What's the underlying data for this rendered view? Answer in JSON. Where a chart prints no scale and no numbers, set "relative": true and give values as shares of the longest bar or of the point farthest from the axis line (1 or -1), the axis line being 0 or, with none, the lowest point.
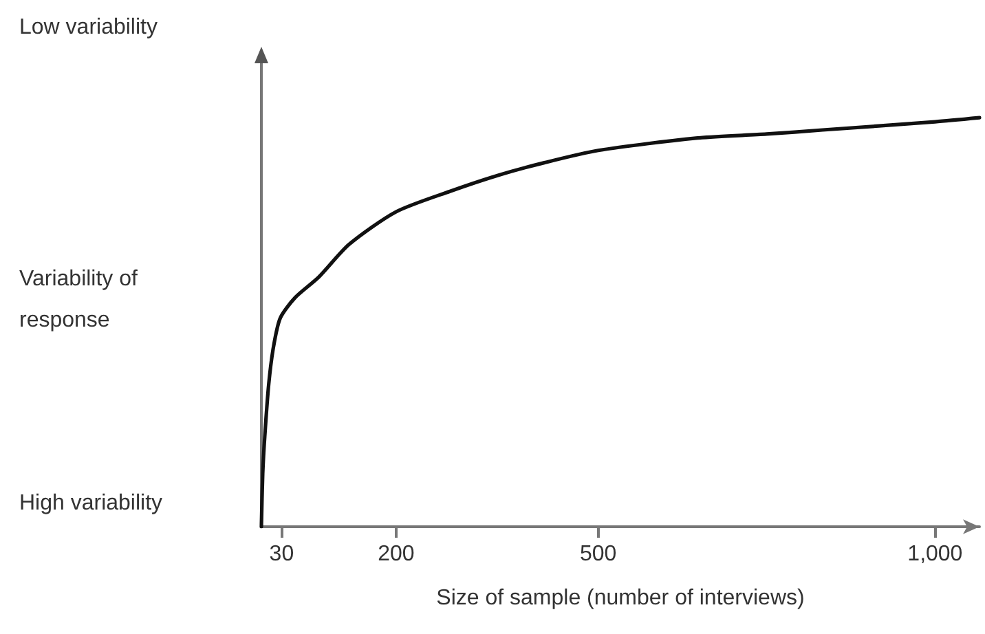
{
  "chart_data": {
    "type": "line",
    "relative": true,
    "xlabel": "Size of sample (number of interviews)",
    "annotations": [
      "Low variability",
      "Variability of response",
      "High variability"
    ],
    "x": [
      0,
      2,
      5,
      11,
      18,
      28,
      50,
      85,
      130,
      200,
      280,
      353,
      420,
      500,
      645,
      750,
      833,
      1000,
      1066
    ],
    "series": [
      {
        "color": "#111111",
        "values": [
          0,
          0.13,
          0.22,
          0.35,
          0.44,
          0.51,
          0.56,
          0.61,
          0.69,
          0.77,
          0.82,
          0.86,
          0.89,
          0.92,
          0.95,
          0.96,
          0.97,
          0.99,
          1
        ]
      }
    ],
    "xlim": [
      0,
      1066
    ],
    "xticks": [
      30,
      200,
      500,
      {
        "value": 1000,
        "label": "1,000"
      }
    ],
    "grid": false,
    "marker": "none",
    "line_style": "solid"
  }
}
